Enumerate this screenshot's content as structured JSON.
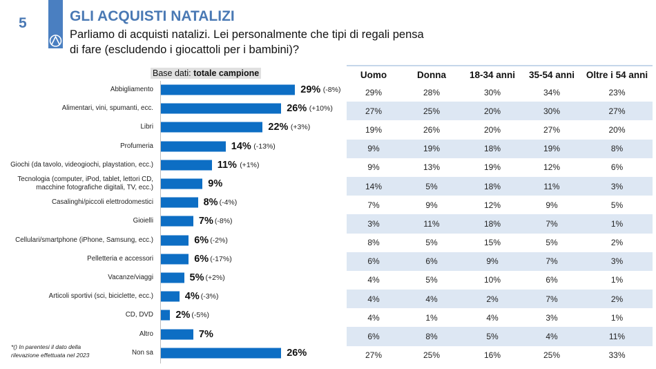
{
  "header": {
    "slide_number": "5",
    "title": "GLI ACQUISTI NATALIZI",
    "question": "Parliamo di acquisti natalizi. Lei personalmente che tipi di regali pensa di fare (escludendo i giocattoli per i bambini)?",
    "brand_color": "#4a79b4"
  },
  "base": {
    "label": "Base dati: ",
    "value": "totale campione"
  },
  "footnote": "*() In parentesi il dato della rilevazione effettuata nel 2023",
  "chart_data": {
    "type": "bar",
    "orientation": "horizontal",
    "bar_color": "#0d6ec4",
    "categories": [
      "Abbigliamento",
      "Alimentari, vini, spumanti, ecc.",
      "Libri",
      "Profumeria",
      "Giochi (da tavolo, videogiochi, playstation, ecc.)",
      "Tecnologia (computer, iPod, tablet, lettori CD, macchine fotografiche digitali, TV, ecc.)",
      "Casalinghi/piccoli elettrodomestici",
      "Gioielli",
      "Cellulari/smartphone (iPhone, Samsung, ecc.)",
      "Pelletteria e accessori",
      "Vacanze/viaggi",
      "Articoli sportivi (sci, biciclette, ecc.)",
      "CD, DVD",
      "Altro",
      "Non sa"
    ],
    "values": [
      29,
      26,
      22,
      14,
      11,
      9,
      8,
      7,
      6,
      6,
      5,
      4,
      2,
      7,
      26
    ],
    "value_labels": [
      "29%",
      "26%",
      "22%",
      "14%",
      "11%",
      "9%",
      "8%",
      "7%",
      "6%",
      "6%",
      "5%",
      "4%",
      "2%",
      "7%",
      "26%"
    ],
    "change_vs_2023": [
      "(-8%)",
      "(+10%)",
      "(+3%)",
      "(-13%)",
      "(+1%)",
      "",
      "(-4%)",
      "(-8%)",
      "(-2%)",
      "(-17%)",
      "(+2%)",
      "(-3%)",
      "(-5%)",
      "",
      ""
    ],
    "unit": "%"
  },
  "table": {
    "columns": [
      "Uomo",
      "Donna",
      "18-34 anni",
      "35-54 anni",
      "Oltre i 54 anni"
    ],
    "rows": [
      [
        "29%",
        "28%",
        "30%",
        "34%",
        "23%"
      ],
      [
        "27%",
        "25%",
        "20%",
        "30%",
        "27%"
      ],
      [
        "19%",
        "26%",
        "20%",
        "27%",
        "20%"
      ],
      [
        "9%",
        "19%",
        "18%",
        "19%",
        "8%"
      ],
      [
        "9%",
        "13%",
        "19%",
        "12%",
        "6%"
      ],
      [
        "14%",
        "5%",
        "18%",
        "11%",
        "3%"
      ],
      [
        "7%",
        "9%",
        "12%",
        "9%",
        "5%"
      ],
      [
        "3%",
        "11%",
        "18%",
        "7%",
        "1%"
      ],
      [
        "8%",
        "5%",
        "15%",
        "5%",
        "2%"
      ],
      [
        "6%",
        "6%",
        "9%",
        "7%",
        "3%"
      ],
      [
        "4%",
        "5%",
        "10%",
        "6%",
        "1%"
      ],
      [
        "4%",
        "4%",
        "2%",
        "7%",
        "2%"
      ],
      [
        "4%",
        "1%",
        "4%",
        "3%",
        "1%"
      ],
      [
        "6%",
        "8%",
        "5%",
        "4%",
        "11%"
      ],
      [
        "27%",
        "25%",
        "16%",
        "25%",
        "33%"
      ]
    ]
  }
}
